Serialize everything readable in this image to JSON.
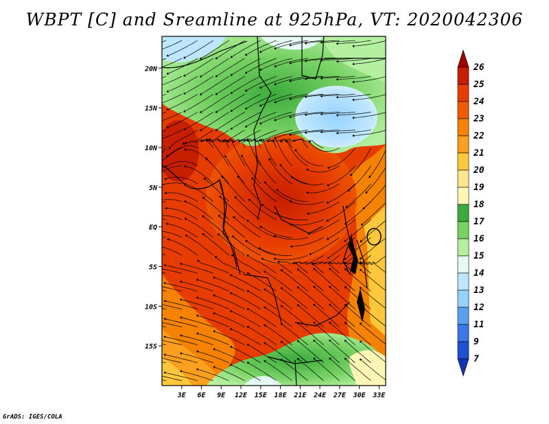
{
  "title": "WBPT [C] and Sreamline at 925hPa, VT: 2020042306",
  "credit": "GrADS: IGES/COLA",
  "map": {
    "lat_range": [
      -20,
      24
    ],
    "lon_range": [
      0,
      34
    ],
    "lat_ticks": [
      {
        "value": 20,
        "label": "20N"
      },
      {
        "value": 15,
        "label": "15N"
      },
      {
        "value": 10,
        "label": "10N"
      },
      {
        "value": 5,
        "label": "5N"
      },
      {
        "value": 0,
        "label": "EQ"
      },
      {
        "value": -5,
        "label": "5S"
      },
      {
        "value": -10,
        "label": "10S"
      },
      {
        "value": -15,
        "label": "15S"
      }
    ],
    "lon_ticks": [
      {
        "value": 3,
        "label": "3E"
      },
      {
        "value": 6,
        "label": "6E"
      },
      {
        "value": 9,
        "label": "9E"
      },
      {
        "value": 12,
        "label": "12E"
      },
      {
        "value": 15,
        "label": "15E"
      },
      {
        "value": 18,
        "label": "18E"
      },
      {
        "value": 21,
        "label": "21E"
      },
      {
        "value": 24,
        "label": "24E"
      },
      {
        "value": 27,
        "label": "27E"
      },
      {
        "value": 30,
        "label": "30E"
      },
      {
        "value": 33,
        "label": "33E"
      }
    ]
  },
  "colorbar": {
    "labels": [
      "26",
      "25",
      "24",
      "23",
      "22",
      "21",
      "20",
      "19",
      "18",
      "17",
      "16",
      "15",
      "14",
      "13",
      "12",
      "11",
      "9",
      "7"
    ],
    "colors": [
      "#a00000",
      "#c81e00",
      "#e63c00",
      "#f05a00",
      "#f58200",
      "#faa01e",
      "#ffc83c",
      "#ffe68c",
      "#fff5b4",
      "#3caa3c",
      "#78d264",
      "#b4f0a0",
      "#e6faf5",
      "#bee6ff",
      "#96d2ff",
      "#5aa0f0",
      "#3c78e6",
      "#1e50d2",
      "#1432b4"
    ]
  }
}
